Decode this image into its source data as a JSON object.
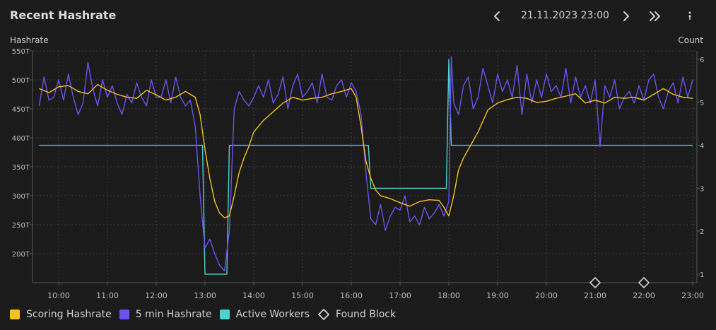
{
  "header": {
    "title": "Recent Hashrate",
    "date": "21.11.2023 23:00"
  },
  "axes": {
    "left_title": "Hashrate",
    "right_title": "Count"
  },
  "legend": [
    {
      "label": "Scoring Hashrate",
      "color": "#f5c21b",
      "shape": "square"
    },
    {
      "label": "5 min Hashrate",
      "color": "#6b52f0",
      "shape": "square"
    },
    {
      "label": "Active Workers",
      "color": "#4fd1d0",
      "shape": "square"
    },
    {
      "label": "Found Block",
      "color": "#d0d0d0",
      "shape": "diamond"
    }
  ],
  "chart_data": {
    "type": "line",
    "x_ticks": [
      "10:00",
      "11:00",
      "12:00",
      "13:00",
      "14:00",
      "15:00",
      "16:00",
      "17:00",
      "18:00",
      "19:00",
      "20:00",
      "21:00",
      "22:00",
      "23:00"
    ],
    "y_left": {
      "label": "Hashrate",
      "ticks": [
        "200T",
        "250T",
        "300T",
        "350T",
        "400T",
        "450T",
        "500T",
        "550T"
      ],
      "range": [
        150,
        550
      ],
      "unit": "T"
    },
    "y_right": {
      "label": "Count",
      "ticks": [
        "1",
        "2",
        "3",
        "4",
        "5",
        "6"
      ],
      "range": [
        0.8,
        6.2
      ]
    },
    "x_range_hours": [
      9.6,
      23.0
    ],
    "grid": true,
    "series": [
      {
        "name": "Scoring Hashrate",
        "axis": "left",
        "color": "#f5c21b",
        "x": [
          9.6,
          9.8,
          10,
          10.2,
          10.4,
          10.6,
          10.8,
          11,
          11.2,
          11.4,
          11.6,
          11.8,
          12,
          12.2,
          12.4,
          12.6,
          12.8,
          12.9,
          13,
          13.1,
          13.2,
          13.3,
          13.4,
          13.5,
          13.6,
          13.7,
          13.8,
          13.9,
          14,
          14.2,
          14.4,
          14.6,
          14.8,
          15,
          15.2,
          15.4,
          15.6,
          15.8,
          16,
          16.1,
          16.2,
          16.3,
          16.4,
          16.5,
          16.6,
          16.8,
          17,
          17.2,
          17.4,
          17.6,
          17.8,
          17.9,
          18,
          18.1,
          18.2,
          18.3,
          18.4,
          18.6,
          18.8,
          19,
          19.2,
          19.4,
          19.6,
          19.8,
          20,
          20.2,
          20.4,
          20.6,
          20.8,
          21,
          21.2,
          21.4,
          21.6,
          21.8,
          22,
          22.2,
          22.4,
          22.6,
          22.8,
          23
        ],
        "y": [
          485,
          478,
          488,
          490,
          480,
          476,
          492,
          482,
          475,
          470,
          468,
          482,
          474,
          465,
          470,
          480,
          470,
          440,
          380,
          330,
          290,
          270,
          262,
          265,
          300,
          340,
          365,
          385,
          410,
          430,
          445,
          460,
          470,
          465,
          468,
          470,
          476,
          480,
          485,
          470,
          420,
          360,
          330,
          310,
          300,
          295,
          288,
          282,
          290,
          293,
          292,
          280,
          265,
          300,
          345,
          365,
          380,
          410,
          448,
          460,
          466,
          470,
          468,
          461,
          463,
          468,
          472,
          476,
          460,
          465,
          460,
          470,
          468,
          470,
          465,
          475,
          485,
          475,
          470,
          468
        ]
      },
      {
        "name": "5 min Hashrate",
        "axis": "left",
        "color": "#6b52f0",
        "x": [
          9.6,
          9.7,
          9.8,
          9.9,
          10,
          10.1,
          10.2,
          10.3,
          10.4,
          10.5,
          10.6,
          10.7,
          10.8,
          10.9,
          11,
          11.1,
          11.2,
          11.3,
          11.4,
          11.5,
          11.6,
          11.7,
          11.8,
          11.9,
          12,
          12.1,
          12.2,
          12.3,
          12.4,
          12.5,
          12.6,
          12.7,
          12.8,
          12.9,
          13,
          13.1,
          13.2,
          13.3,
          13.4,
          13.5,
          13.6,
          13.7,
          13.8,
          13.9,
          14,
          14.1,
          14.2,
          14.3,
          14.4,
          14.5,
          14.6,
          14.7,
          14.8,
          14.9,
          15,
          15.1,
          15.2,
          15.3,
          15.4,
          15.5,
          15.6,
          15.7,
          15.8,
          15.9,
          16,
          16.1,
          16.2,
          16.3,
          16.4,
          16.5,
          16.6,
          16.7,
          16.8,
          16.9,
          17,
          17.1,
          17.2,
          17.3,
          17.4,
          17.5,
          17.6,
          17.7,
          17.8,
          17.9,
          18,
          18.05,
          18.1,
          18.2,
          18.3,
          18.4,
          18.5,
          18.6,
          18.7,
          18.8,
          18.9,
          19,
          19.1,
          19.2,
          19.3,
          19.4,
          19.5,
          19.6,
          19.7,
          19.8,
          19.9,
          20,
          20.1,
          20.2,
          20.3,
          20.4,
          20.5,
          20.6,
          20.7,
          20.8,
          20.9,
          21,
          21.1,
          21.2,
          21.3,
          21.4,
          21.5,
          21.6,
          21.7,
          21.8,
          21.9,
          22,
          22.1,
          22.2,
          22.3,
          22.4,
          22.5,
          22.6,
          22.7,
          22.8,
          22.9,
          23
        ],
        "y": [
          455,
          505,
          465,
          470,
          500,
          465,
          510,
          470,
          440,
          460,
          530,
          485,
          455,
          500,
          470,
          490,
          460,
          440,
          475,
          460,
          495,
          470,
          455,
          500,
          470,
          470,
          500,
          460,
          505,
          470,
          455,
          465,
          420,
          300,
          210,
          225,
          200,
          180,
          170,
          240,
          450,
          480,
          465,
          455,
          470,
          490,
          470,
          500,
          460,
          475,
          505,
          450,
          490,
          510,
          470,
          480,
          495,
          460,
          510,
          470,
          465,
          490,
          500,
          470,
          495,
          480,
          440,
          340,
          260,
          250,
          285,
          240,
          265,
          280,
          275,
          300,
          255,
          265,
          250,
          280,
          260,
          270,
          285,
          265,
          290,
          540,
          460,
          440,
          490,
          505,
          450,
          470,
          520,
          490,
          460,
          510,
          480,
          500,
          470,
          525,
          440,
          510,
          460,
          500,
          470,
          510,
          480,
          490,
          470,
          520,
          460,
          505,
          470,
          490,
          460,
          500,
          385,
          490,
          470,
          500,
          450,
          470,
          480,
          460,
          490,
          465,
          500,
          510,
          470,
          450,
          480,
          495,
          460,
          505,
          470,
          500
        ]
      },
      {
        "name": "Active Workers",
        "axis": "right",
        "color": "#4fd1d0",
        "step": true,
        "x": [
          9.6,
          12.95,
          13.0,
          13.45,
          13.5,
          16.35,
          16.4,
          17.9,
          17.95,
          18.0,
          18.05,
          23.0
        ],
        "y": [
          4,
          4,
          1,
          1,
          4,
          4,
          3,
          3,
          3,
          6,
          4,
          4
        ]
      }
    ],
    "found_blocks": [
      "21:00",
      "22:00"
    ]
  }
}
